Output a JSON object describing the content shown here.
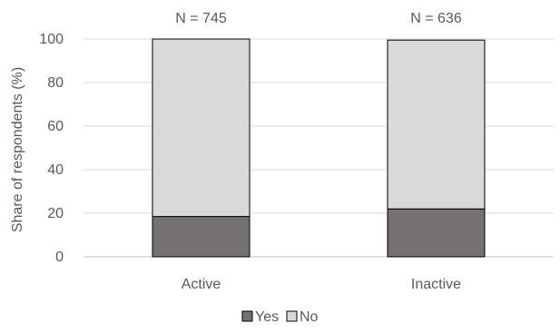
{
  "chart_data": {
    "type": "bar",
    "stacked": true,
    "categories": [
      "Active",
      "Inactive"
    ],
    "category_annotations": [
      "N = 745",
      "N = 636"
    ],
    "series": [
      {
        "name": "Yes",
        "values": [
          18.5,
          22.0
        ],
        "color": "#767171"
      },
      {
        "name": "No",
        "values": [
          81.5,
          77.5
        ],
        "color": "#d9d9d9"
      }
    ],
    "ylabel": "Share of respondents (%)",
    "xlabel": "",
    "title": "",
    "ylim": [
      0,
      100
    ],
    "yticks": [
      0,
      20,
      40,
      60,
      80,
      100
    ],
    "grid": true,
    "legend_position": "bottom"
  }
}
